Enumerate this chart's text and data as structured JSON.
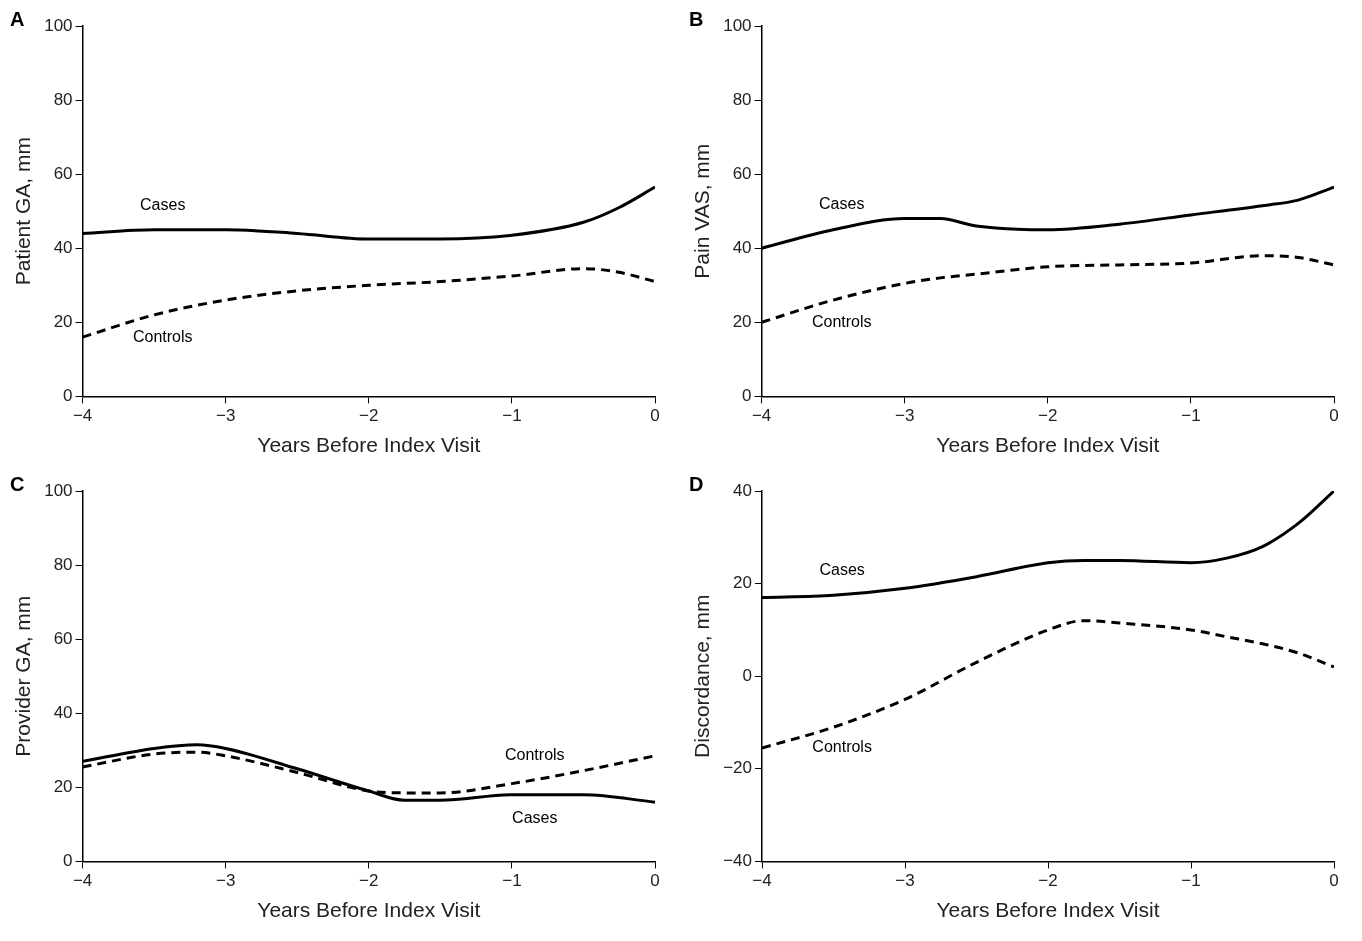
{
  "chart_data": [
    {
      "type": "line",
      "annotations": [
        "A"
      ],
      "xlabel": "Years Before Index Visit",
      "ylabel": "Patient GA, mm",
      "x": [
        -4,
        -3.5,
        -3,
        -2.5,
        -2,
        -1.5,
        -1,
        -0.5,
        -0.25,
        0
      ],
      "xlim": [
        -4,
        0
      ],
      "xticks": [
        {
          "value": -4,
          "label": "−4"
        },
        {
          "value": -3,
          "label": "−3"
        },
        {
          "value": -2,
          "label": "−2"
        },
        {
          "value": -1,
          "label": "−1"
        },
        {
          "value": 0,
          "label": "0"
        }
      ],
      "ylim": [
        0,
        100
      ],
      "yticks": [
        0,
        20,
        40,
        60,
        80,
        100
      ],
      "grid": false,
      "legend": false,
      "series": [
        {
          "name": "Cases",
          "color": "#000000",
          "line_style": "solid",
          "values": [
            44,
            45,
            45,
            44,
            42.5,
            42.5,
            43.5,
            47,
            51,
            56.5
          ]
        },
        {
          "name": "Controls",
          "color": "#000000",
          "line_style": "dashed",
          "values": [
            16,
            22,
            26,
            28.5,
            30,
            31,
            32.5,
            34.5,
            33.5,
            31
          ]
        }
      ]
    },
    {
      "type": "line",
      "annotations": [
        "B"
      ],
      "xlabel": "Years Before Index Visit",
      "ylabel": "Pain VAS, mm",
      "x": [
        -4,
        -3.5,
        -3,
        -2.75,
        -2.5,
        -2,
        -1.5,
        -1,
        -0.5,
        -0.25,
        0
      ],
      "xlim": [
        -4,
        0
      ],
      "xticks": [
        {
          "value": -4,
          "label": "−4"
        },
        {
          "value": -3,
          "label": "−3"
        },
        {
          "value": -2,
          "label": "−2"
        },
        {
          "value": -1,
          "label": "−1"
        },
        {
          "value": 0,
          "label": "0"
        }
      ],
      "ylim": [
        0,
        100
      ],
      "yticks": [
        0,
        20,
        40,
        60,
        80,
        100
      ],
      "grid": false,
      "legend": false,
      "series": [
        {
          "name": "Cases",
          "color": "#000000",
          "line_style": "solid",
          "values": [
            40,
            45,
            48,
            48,
            46,
            45,
            46.5,
            49,
            51.5,
            53,
            56.5
          ]
        },
        {
          "name": "Controls",
          "color": "#000000",
          "line_style": "dashed",
          "values": [
            20,
            26,
            30.5,
            32,
            33,
            35,
            35.5,
            36,
            38,
            37.5,
            35.5
          ]
        }
      ]
    },
    {
      "type": "line",
      "annotations": [
        "C"
      ],
      "xlabel": "Years Before Index Visit",
      "ylabel": "Provider GA, mm",
      "x": [
        -4,
        -3.5,
        -3.2,
        -3,
        -2.5,
        -2,
        -1.75,
        -1.5,
        -1,
        -0.5,
        0
      ],
      "xlim": [
        -4,
        0
      ],
      "xticks": [
        {
          "value": -4,
          "label": "−4"
        },
        {
          "value": -3,
          "label": "−3"
        },
        {
          "value": -2,
          "label": "−2"
        },
        {
          "value": -1,
          "label": "−1"
        },
        {
          "value": 0,
          "label": "0"
        }
      ],
      "ylim": [
        0,
        100
      ],
      "yticks": [
        0,
        20,
        40,
        60,
        80,
        100
      ],
      "grid": false,
      "legend": false,
      "series": [
        {
          "name": "Cases",
          "color": "#000000",
          "line_style": "solid",
          "values": [
            27,
            30.5,
            31.5,
            30.5,
            25,
            19,
            16.5,
            16.5,
            18,
            18,
            16
          ]
        },
        {
          "name": "Controls",
          "color": "#000000",
          "line_style": "dashed",
          "values": [
            25.5,
            29,
            29.5,
            28.5,
            24,
            19,
            18.5,
            18.5,
            21,
            24.5,
            28.5
          ]
        }
      ]
    },
    {
      "type": "line",
      "annotations": [
        "D"
      ],
      "xlabel": "Years Before Index Visit",
      "ylabel": "Discordance, mm",
      "x": [
        -4,
        -3.5,
        -3,
        -2.5,
        -2,
        -1.75,
        -1.5,
        -1,
        -0.75,
        -0.5,
        -0.25,
        0
      ],
      "xlim": [
        -4,
        0
      ],
      "xticks": [
        {
          "value": -4,
          "label": "−4"
        },
        {
          "value": -3,
          "label": "−3"
        },
        {
          "value": -2,
          "label": "−2"
        },
        {
          "value": -1,
          "label": "−1"
        },
        {
          "value": 0,
          "label": "0"
        }
      ],
      "ylim": [
        -40,
        40
      ],
      "yticks": [
        {
          "value": -40,
          "label": "−40"
        },
        {
          "value": -20,
          "label": "−20"
        },
        0,
        20,
        40
      ],
      "grid": false,
      "legend": false,
      "series": [
        {
          "name": "Cases",
          "color": "#000000",
          "line_style": "solid",
          "values": [
            17,
            17.5,
            19,
            21.5,
            24.5,
            25,
            25,
            24.5,
            25.5,
            28,
            33,
            40
          ]
        },
        {
          "name": "Controls",
          "color": "#000000",
          "line_style": "dashed",
          "values": [
            -15.5,
            -11,
            -5,
            3,
            10,
            12,
            11.5,
            10,
            8.5,
            7,
            5,
            2
          ]
        }
      ]
    }
  ]
}
